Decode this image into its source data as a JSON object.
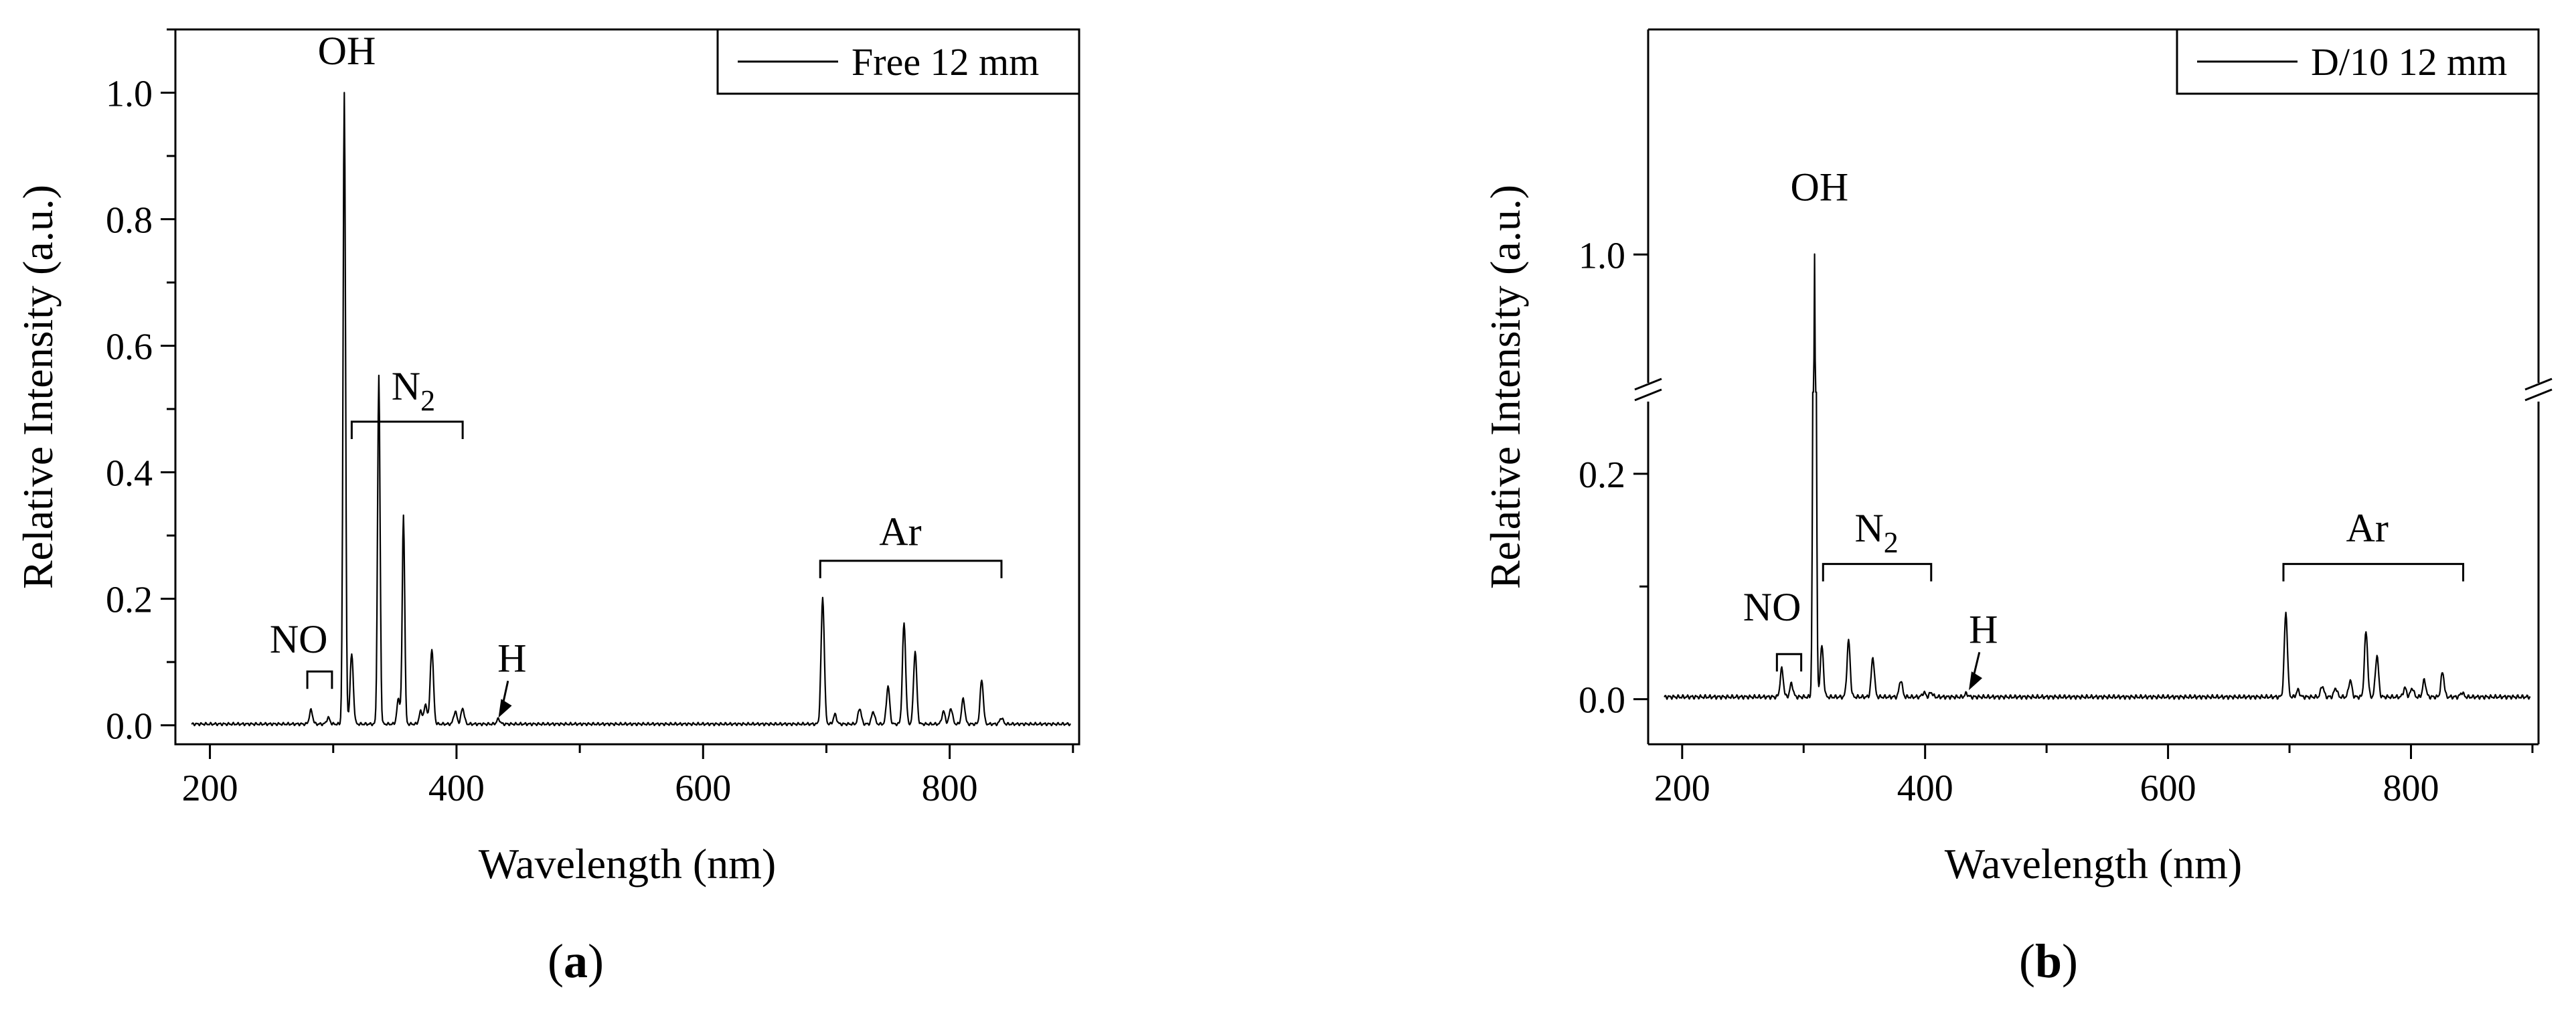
{
  "colors": {
    "line": "#000000",
    "background": "#ffffff"
  },
  "chart_data": [
    {
      "panel_label": "a",
      "type": "line",
      "xlabel": "Wavelength (nm)",
      "ylabel": "Relative Intensity (a.u.)",
      "xlim": [
        172,
        905
      ],
      "ylim": [
        -0.03,
        1.1
      ],
      "xticks": [
        200,
        400,
        600,
        800
      ],
      "yticks": [
        0.0,
        0.2,
        0.4,
        0.6,
        0.8,
        1.0
      ],
      "ytick_labels": [
        "0.0",
        "0.2",
        "0.4",
        "0.6",
        "0.8",
        "1.0"
      ],
      "grid": false,
      "legend": {
        "position": "top-right",
        "entries": [
          "Free 12 mm"
        ]
      },
      "series": [
        {
          "name": "Free 12 mm",
          "baseline": 0.002,
          "peaks": [
            {
              "x": 282,
              "y": 0.022
            },
            {
              "x": 296,
              "y": 0.01
            },
            {
              "x": 309,
              "y": 1.0
            },
            {
              "x": 315,
              "y": 0.11
            },
            {
              "x": 337,
              "y": 0.55
            },
            {
              "x": 353,
              "y": 0.04
            },
            {
              "x": 357,
              "y": 0.33
            },
            {
              "x": 371,
              "y": 0.02
            },
            {
              "x": 375,
              "y": 0.03
            },
            {
              "x": 380,
              "y": 0.12
            },
            {
              "x": 399,
              "y": 0.02
            },
            {
              "x": 405,
              "y": 0.025
            },
            {
              "x": 434,
              "y": 0.008
            },
            {
              "x": 697,
              "y": 0.2
            },
            {
              "x": 707,
              "y": 0.015
            },
            {
              "x": 727,
              "y": 0.025
            },
            {
              "x": 738,
              "y": 0.02
            },
            {
              "x": 750,
              "y": 0.06
            },
            {
              "x": 763,
              "y": 0.16
            },
            {
              "x": 772,
              "y": 0.115
            },
            {
              "x": 795,
              "y": 0.02
            },
            {
              "x": 801,
              "y": 0.025
            },
            {
              "x": 811,
              "y": 0.04
            },
            {
              "x": 826,
              "y": 0.07
            },
            {
              "x": 842,
              "y": 0.01
            }
          ]
        }
      ],
      "annotations": [
        {
          "text": "OH",
          "x": 311,
          "y": 1.045
        },
        {
          "text": "N",
          "subscript": "2",
          "x": 365,
          "y": 0.515,
          "range": [
            315,
            405
          ],
          "bracket_y": 0.48
        },
        {
          "text": "NO",
          "x": 272,
          "y": 0.115,
          "range": [
            279,
            299
          ],
          "bracket_y": 0.085
        },
        {
          "text": "H",
          "x": 445,
          "y": 0.085,
          "arrow_to": [
            434,
            0.012
          ]
        },
        {
          "text": "Ar",
          "x": 760,
          "y": 0.285,
          "range": [
            695,
            842
          ],
          "bracket_y": 0.26
        }
      ]
    },
    {
      "panel_label": "b",
      "type": "line",
      "xlabel": "Wavelength (nm)",
      "ylabel": "Relative Intensity (a.u.)",
      "xlim": [
        172,
        905
      ],
      "ylim": [
        -0.04,
        1.25
      ],
      "xticks": [
        200,
        400,
        600,
        800
      ],
      "yticks": [
        0.0,
        0.2,
        1.0
      ],
      "ytick_labels": [
        "0.0",
        "0.2",
        "1.0"
      ],
      "axis_break": {
        "from": 0.27,
        "to": 0.85
      },
      "grid": false,
      "legend": {
        "position": "top-right",
        "entries": [
          "D/10 12 mm"
        ]
      },
      "series": [
        {
          "name": "D/10 12 mm",
          "baseline": 0.002,
          "peaks": [
            {
              "x": 282,
              "y": 0.025
            },
            {
              "x": 290,
              "y": 0.012
            },
            {
              "x": 309,
              "y": 1.0
            },
            {
              "x": 315,
              "y": 0.045
            },
            {
              "x": 337,
              "y": 0.05
            },
            {
              "x": 357,
              "y": 0.035
            },
            {
              "x": 380,
              "y": 0.015
            },
            {
              "x": 399,
              "y": 0.004
            },
            {
              "x": 405,
              "y": 0.004
            },
            {
              "x": 434,
              "y": 0.003
            },
            {
              "x": 697,
              "y": 0.075
            },
            {
              "x": 707,
              "y": 0.006
            },
            {
              "x": 727,
              "y": 0.01
            },
            {
              "x": 738,
              "y": 0.008
            },
            {
              "x": 750,
              "y": 0.015
            },
            {
              "x": 763,
              "y": 0.058
            },
            {
              "x": 772,
              "y": 0.037
            },
            {
              "x": 795,
              "y": 0.008
            },
            {
              "x": 801,
              "y": 0.008
            },
            {
              "x": 811,
              "y": 0.015
            },
            {
              "x": 826,
              "y": 0.022
            },
            {
              "x": 842,
              "y": 0.004
            }
          ]
        }
      ],
      "annotations": [
        {
          "text": "OH",
          "x": 313,
          "y": 1.06
        },
        {
          "text": "N",
          "subscript": "2",
          "x": 360,
          "y": 0.14,
          "range": [
            316,
            405
          ],
          "bracket_y": 0.12
        },
        {
          "text": "NO",
          "x": 274,
          "y": 0.07,
          "range": [
            278,
            298
          ],
          "bracket_y": 0.04
        },
        {
          "text": "H",
          "x": 448,
          "y": 0.05,
          "arrow_to": [
            436,
            0.008
          ]
        },
        {
          "text": "Ar",
          "x": 764,
          "y": 0.14,
          "range": [
            695,
            843
          ],
          "bracket_y": 0.12
        }
      ]
    }
  ]
}
